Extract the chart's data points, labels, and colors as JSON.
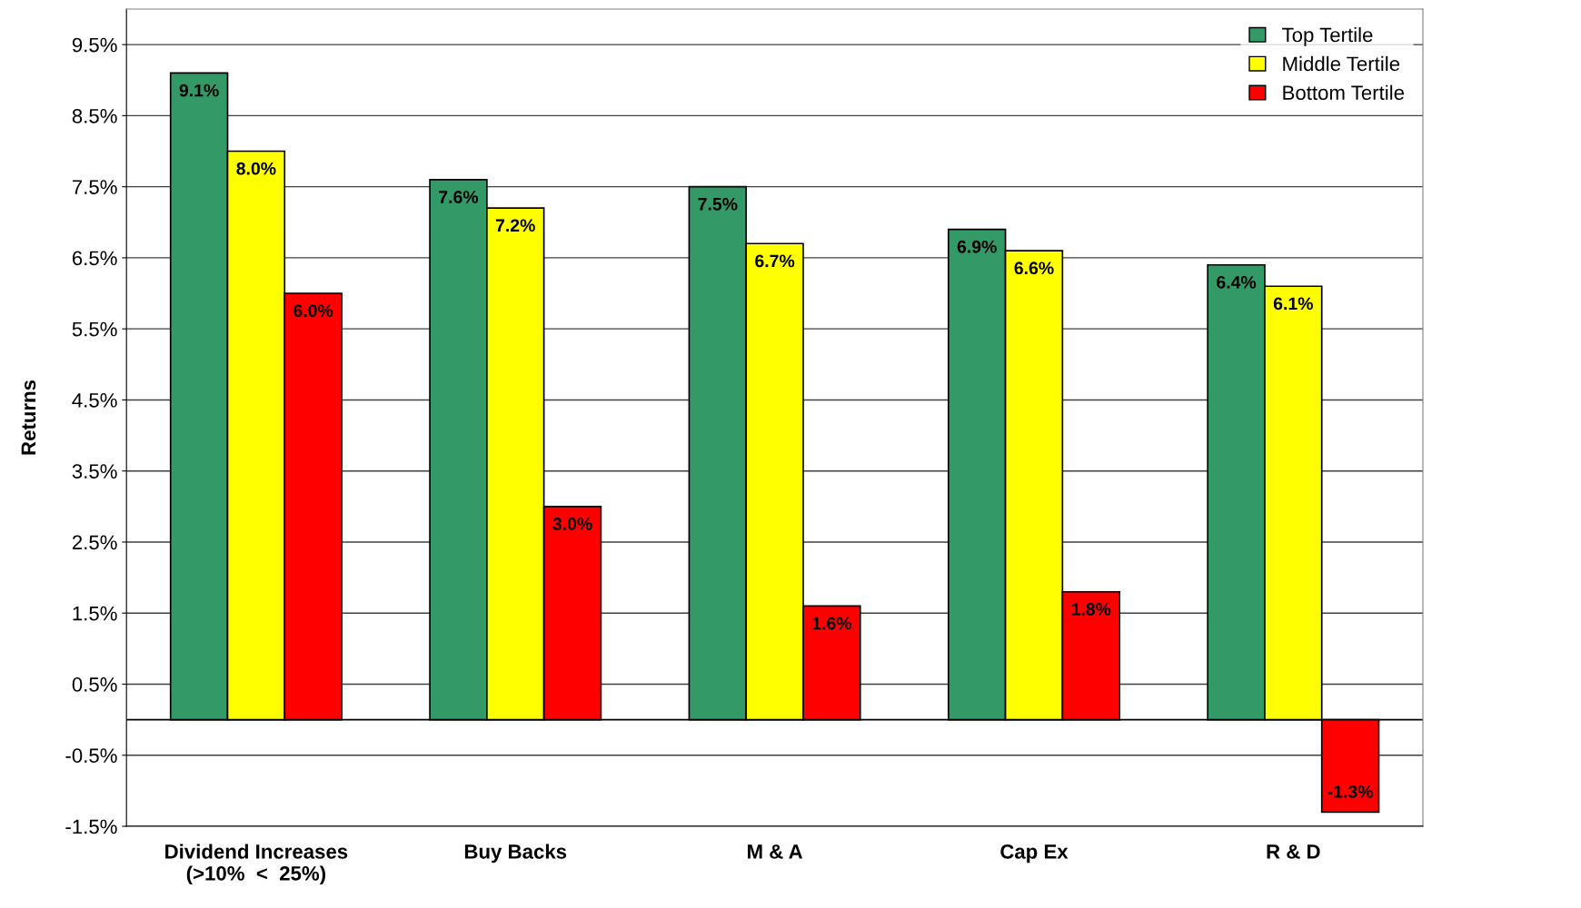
{
  "chart_data": {
    "type": "bar",
    "ylabel": "Returns",
    "categories": [
      "Dividend Increases\n(>10%  <  25%)",
      "Buy Backs",
      "M & A",
      "Cap Ex",
      "R & D"
    ],
    "series": [
      {
        "name": "Top Tertile",
        "color": "#339966",
        "values": [
          9.1,
          7.6,
          7.5,
          6.9,
          6.4
        ],
        "value_labels": [
          "9.1%",
          "7.6%",
          "7.5%",
          "6.9%",
          "6.4%"
        ]
      },
      {
        "name": "Middle Tertile",
        "color": "#ffff00",
        "values": [
          8.0,
          7.2,
          6.7,
          6.6,
          6.1
        ],
        "value_labels": [
          "8.0%",
          "7.2%",
          "6.7%",
          "6.6%",
          "6.1%"
        ]
      },
      {
        "name": "Bottom Tertile",
        "color": "#ff0000",
        "values": [
          6.0,
          3.0,
          1.6,
          1.8,
          -1.3
        ],
        "value_labels": [
          "6.0%",
          "3.0%",
          "1.6%",
          "1.8%",
          "-1.3%"
        ]
      }
    ],
    "ylim": [
      -1.5,
      10.0
    ],
    "yticks": [
      {
        "value": -1.5,
        "label": "-1.5%"
      },
      {
        "value": -0.5,
        "label": "-0.5%"
      },
      {
        "value": 0.5,
        "label": "0.5%"
      },
      {
        "value": 1.5,
        "label": "1.5%"
      },
      {
        "value": 2.5,
        "label": "2.5%"
      },
      {
        "value": 3.5,
        "label": "3.5%"
      },
      {
        "value": 4.5,
        "label": "4.5%"
      },
      {
        "value": 5.5,
        "label": "5.5%"
      },
      {
        "value": 6.5,
        "label": "6.5%"
      },
      {
        "value": 7.5,
        "label": "7.5%"
      },
      {
        "value": 8.5,
        "label": "8.5%"
      },
      {
        "value": 9.5,
        "label": "9.5%"
      }
    ],
    "grid": "y",
    "legend": "top right"
  }
}
